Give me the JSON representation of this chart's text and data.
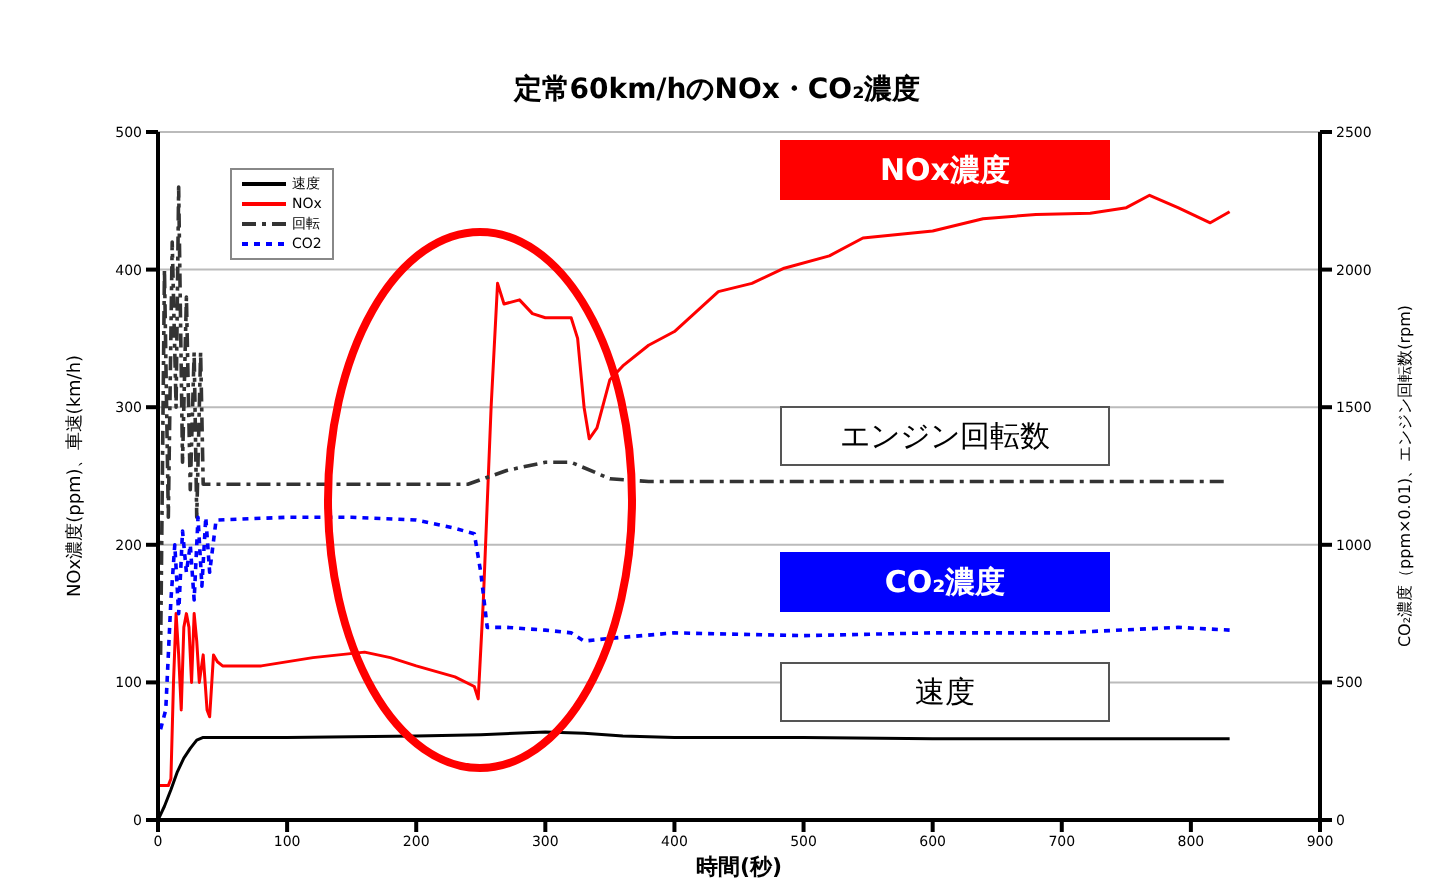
{
  "chart_data": {
    "type": "line",
    "title": "定常60km/hのNOx・CO₂濃度",
    "xlabel": "時間(秒)",
    "ylabel": "NOx濃度(ppm)、車速(km/h)",
    "y2label": "CO₂濃度（ppm×0.01)、エンジン回転数(rpm)",
    "xlim": [
      0,
      900
    ],
    "xticks": [
      0,
      100,
      200,
      300,
      400,
      500,
      600,
      700,
      800,
      900
    ],
    "ylim": [
      0,
      500
    ],
    "yticks": [
      0,
      100,
      200,
      300,
      400,
      500
    ],
    "y2lim": [
      0,
      2500
    ],
    "y2ticks": [
      0,
      500,
      1000,
      1500,
      2000,
      2500
    ],
    "grid": "y",
    "legend": "top left",
    "marker": "none",
    "annotations": [
      "NOx濃度",
      "エンジン回転数",
      "CO₂濃度",
      "速度"
    ],
    "series": [
      {
        "name": "速度",
        "color": "#000000",
        "line_style": "solid",
        "x": [
          0,
          5,
          10,
          15,
          20,
          25,
          30,
          35,
          100,
          200,
          250,
          300,
          330,
          360,
          400,
          500,
          600,
          700,
          830
        ],
        "values": [
          0,
          10,
          22,
          35,
          45,
          52,
          58,
          60,
          60,
          61,
          62,
          64,
          63,
          61,
          60,
          60,
          59,
          59,
          59
        ]
      },
      {
        "name": "NOx",
        "color": "#ff0000",
        "line_style": "solid",
        "x": [
          0,
          8,
          10,
          12,
          14,
          16,
          18,
          20,
          22,
          24,
          26,
          28,
          30,
          32,
          35,
          38,
          40,
          43,
          46,
          50,
          80,
          120,
          160,
          180,
          200,
          230,
          245,
          248,
          252,
          258,
          263,
          268,
          280,
          290,
          300,
          320,
          325,
          330,
          334,
          340,
          350,
          360,
          380,
          400,
          434,
          460,
          485,
          520,
          546,
          600,
          639,
          680,
          722,
          750,
          768,
          790,
          815,
          830
        ],
        "values": [
          25,
          25,
          30,
          100,
          150,
          120,
          80,
          140,
          150,
          140,
          100,
          150,
          130,
          100,
          120,
          80,
          75,
          120,
          115,
          112,
          112,
          118,
          122,
          118,
          112,
          104,
          97,
          88,
          160,
          300,
          390,
          375,
          378,
          368,
          365,
          365,
          350,
          300,
          277,
          285,
          320,
          330,
          345,
          355,
          384,
          390,
          401,
          410,
          423,
          428,
          437,
          440,
          441,
          445,
          454,
          445,
          434,
          442
        ]
      },
      {
        "name": "回転",
        "color": "#333333",
        "line_style": "dashed",
        "axis": "y2",
        "x": [
          2,
          5,
          8,
          11,
          14,
          16,
          19,
          22,
          25,
          28,
          30,
          33,
          35,
          100,
          200,
          240,
          270,
          300,
          320,
          350,
          380,
          500,
          700,
          830
        ],
        "values": [
          600,
          2000,
          1100,
          2100,
          1500,
          2300,
          1300,
          1900,
          1200,
          1700,
          1100,
          1700,
          1220,
          1220,
          1220,
          1220,
          1270,
          1300,
          1300,
          1240,
          1230,
          1230,
          1230,
          1230
        ]
      },
      {
        "name": "CO2",
        "color": "#0000ff",
        "line_style": "dotted",
        "axis": "y2",
        "x": [
          2,
          6,
          10,
          13,
          16,
          19,
          22,
          25,
          28,
          31,
          34,
          37,
          40,
          45,
          100,
          150,
          200,
          230,
          245,
          250,
          255,
          270,
          300,
          320,
          330,
          350,
          400,
          500,
          600,
          700,
          790,
          830
        ],
        "values": [
          330,
          400,
          800,
          1000,
          750,
          1050,
          900,
          1000,
          800,
          1100,
          850,
          1100,
          900,
          1090,
          1100,
          1100,
          1090,
          1060,
          1040,
          900,
          700,
          700,
          690,
          680,
          650,
          660,
          680,
          670,
          680,
          680,
          700,
          690
        ]
      }
    ]
  }
}
